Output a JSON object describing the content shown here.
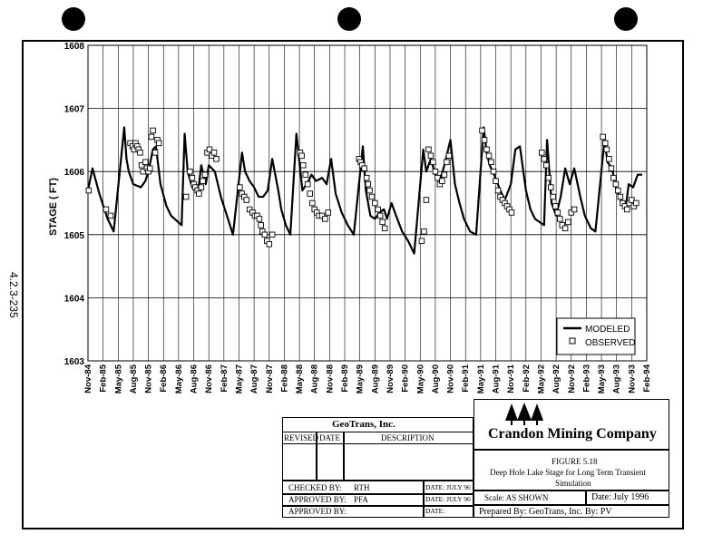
{
  "side_label": "4.2.3-235",
  "chart_data": {
    "type": "line",
    "ylabel": "STAGE ( FT)",
    "ylim": [
      1603,
      1608
    ],
    "y_ticks": [
      1603,
      1604,
      1605,
      1606,
      1607,
      1608
    ],
    "x_ticks": [
      "Nov-84",
      "Feb-85",
      "May-85",
      "Aug-85",
      "Nov-85",
      "Feb-86",
      "May-86",
      "Aug-86",
      "Nov-86",
      "Feb-87",
      "May-87",
      "Aug-87",
      "Nov-87",
      "Feb-88",
      "May-88",
      "Aug-88",
      "Nov-88",
      "Feb-89",
      "May-89",
      "Aug-89",
      "Nov-89",
      "Feb-90",
      "May-90",
      "Aug-90",
      "Nov-90",
      "Feb-91",
      "May-91",
      "Aug-91",
      "Nov-91",
      "Feb-92",
      "May-92",
      "Aug-92",
      "Nov-92",
      "Feb-93",
      "May-93",
      "Aug-93",
      "Nov-93",
      "Feb-94"
    ],
    "grid": true,
    "legend_position": "bottom-right",
    "series": [
      {
        "name": "MODELED",
        "style": "line",
        "x": [
          0,
          0.3,
          0.75,
          1.3,
          1.7,
          2.4,
          2.55,
          2.7,
          3.0,
          3.5,
          3.8,
          4.0,
          4.3,
          4.5,
          4.8,
          5.2,
          5.5,
          6.2,
          6.4,
          6.6,
          6.9,
          7.3,
          7.5,
          7.8,
          8.0,
          8.4,
          8.8,
          9.2,
          9.6,
          10.2,
          10.4,
          10.7,
          11.0,
          11.3,
          11.6,
          11.9,
          12.2,
          12.6,
          12.8,
          13.1,
          13.4,
          13.8,
          14.2,
          14.6,
          14.8,
          15.1,
          15.5,
          15.8,
          16.1,
          16.4,
          16.8,
          17.2,
          17.6,
          18.2,
          18.4,
          18.7,
          19.0,
          19.3,
          19.6,
          19.8,
          20.1,
          20.4,
          20.8,
          21.2,
          21.6,
          22.2,
          22.4,
          22.7,
          23.0,
          23.3,
          23.6,
          24.0,
          24.3,
          24.6,
          24.9,
          25.3,
          25.7,
          26.2,
          26.4,
          26.6,
          26.9,
          27.3,
          27.6,
          28.0,
          28.3,
          28.6,
          29.0,
          29.3,
          29.6,
          30.2,
          30.4,
          30.7,
          31.0,
          31.3,
          31.6,
          31.9,
          32.2,
          32.6,
          32.9,
          33.3,
          33.6,
          34.2,
          34.4,
          34.7,
          35.0,
          35.3,
          35.6,
          35.8,
          36.1,
          36.4,
          36.7
        ],
        "y": [
          1605.7,
          1606.05,
          1605.65,
          1605.25,
          1605.05,
          1606.7,
          1606.2,
          1606.0,
          1605.8,
          1605.75,
          1605.85,
          1606.0,
          1606.35,
          1606.4,
          1605.8,
          1605.45,
          1605.3,
          1605.15,
          1606.6,
          1606.0,
          1605.75,
          1605.7,
          1606.1,
          1605.8,
          1606.1,
          1606.0,
          1605.6,
          1605.3,
          1605.0,
          1606.3,
          1606.0,
          1605.85,
          1605.75,
          1605.6,
          1605.6,
          1605.7,
          1606.2,
          1605.7,
          1605.4,
          1605.15,
          1605.0,
          1606.6,
          1605.7,
          1605.85,
          1605.95,
          1605.85,
          1605.9,
          1605.8,
          1606.2,
          1605.65,
          1605.35,
          1605.15,
          1605.0,
          1606.4,
          1605.7,
          1605.3,
          1605.25,
          1605.35,
          1605.4,
          1605.25,
          1605.5,
          1605.3,
          1605.05,
          1604.9,
          1604.7,
          1606.35,
          1606.0,
          1606.2,
          1605.95,
          1605.85,
          1606.1,
          1606.5,
          1605.8,
          1605.5,
          1605.25,
          1605.05,
          1605.0,
          1606.7,
          1606.3,
          1606.1,
          1605.95,
          1605.7,
          1605.55,
          1605.8,
          1606.35,
          1606.4,
          1605.7,
          1605.4,
          1605.25,
          1605.15,
          1606.5,
          1605.5,
          1605.3,
          1605.6,
          1606.05,
          1605.8,
          1606.05,
          1605.6,
          1605.3,
          1605.1,
          1605.05,
          1606.5,
          1606.15,
          1606.05,
          1605.7,
          1605.55,
          1605.4,
          1605.8,
          1605.75,
          1605.95,
          1605.95
        ],
        "color": "#000000"
      },
      {
        "name": "OBSERVED",
        "style": "markers",
        "x": [
          0.05,
          1.2,
          1.5,
          2.8,
          2.95,
          3.05,
          3.15,
          3.25,
          3.35,
          3.45,
          3.55,
          3.65,
          3.8,
          3.9,
          4.0,
          4.1,
          4.2,
          4.3,
          4.45,
          4.6,
          4.7,
          6.5,
          6.75,
          6.9,
          7.0,
          7.1,
          7.25,
          7.35,
          7.5,
          7.6,
          7.75,
          7.9,
          8.05,
          8.2,
          8.35,
          8.5,
          10.05,
          10.2,
          10.35,
          10.5,
          10.7,
          10.9,
          11.05,
          11.2,
          11.35,
          11.45,
          11.55,
          11.7,
          11.85,
          12.0,
          12.2,
          14.05,
          14.15,
          14.25,
          14.4,
          14.55,
          14.7,
          14.85,
          15.0,
          15.15,
          15.3,
          15.5,
          15.7,
          15.9,
          17.95,
          18.05,
          18.15,
          18.3,
          18.45,
          18.55,
          18.65,
          18.8,
          19.0,
          19.2,
          19.35,
          19.5,
          19.65,
          22.1,
          22.25,
          22.4,
          22.55,
          22.7,
          22.85,
          23.0,
          23.15,
          23.3,
          23.45,
          23.6,
          23.75,
          23.9,
          26.1,
          26.25,
          26.4,
          26.55,
          26.7,
          26.85,
          27.0,
          27.15,
          27.3,
          27.45,
          27.6,
          27.75,
          27.9,
          28.05,
          30.05,
          30.2,
          30.35,
          30.5,
          30.65,
          30.8,
          30.95,
          31.1,
          31.25,
          31.4,
          31.6,
          31.8,
          32.0,
          32.2,
          34.1,
          34.25,
          34.35,
          34.5,
          34.65,
          34.8,
          34.95,
          35.1,
          35.25,
          35.4,
          35.55,
          35.7,
          35.85,
          36.0,
          36.15,
          36.3
        ],
        "y": [
          1605.7,
          1605.4,
          1605.3,
          1606.45,
          1606.4,
          1606.35,
          1606.45,
          1606.4,
          1606.35,
          1606.3,
          1606.1,
          1606.0,
          1606.15,
          1606.05,
          1606.0,
          1606.05,
          1606.55,
          1606.65,
          1606.3,
          1606.5,
          1606.45,
          1605.6,
          1606.0,
          1605.9,
          1605.8,
          1605.75,
          1605.7,
          1605.65,
          1605.75,
          1605.85,
          1605.95,
          1606.3,
          1606.35,
          1606.25,
          1606.3,
          1606.2,
          1605.75,
          1605.65,
          1605.6,
          1605.55,
          1605.4,
          1605.35,
          1605.3,
          1605.3,
          1605.25,
          1605.15,
          1605.05,
          1605.0,
          1604.9,
          1604.85,
          1605.0,
          1606.3,
          1606.25,
          1606.1,
          1605.95,
          1605.8,
          1605.65,
          1605.5,
          1605.4,
          1605.35,
          1605.3,
          1605.3,
          1605.25,
          1605.35,
          1606.2,
          1606.15,
          1606.1,
          1606.05,
          1605.9,
          1605.8,
          1605.7,
          1605.6,
          1605.5,
          1605.4,
          1605.3,
          1605.2,
          1605.1,
          1604.9,
          1605.05,
          1605.55,
          1606.35,
          1606.25,
          1606.15,
          1606.0,
          1605.9,
          1605.8,
          1605.85,
          1605.95,
          1606.15,
          1606.25,
          1606.65,
          1606.5,
          1606.35,
          1606.25,
          1606.15,
          1606.0,
          1605.85,
          1605.7,
          1605.6,
          1605.55,
          1605.5,
          1605.45,
          1605.4,
          1605.35,
          1606.3,
          1606.2,
          1606.1,
          1605.9,
          1605.75,
          1605.6,
          1605.45,
          1605.35,
          1605.25,
          1605.15,
          1605.1,
          1605.2,
          1605.35,
          1605.4,
          1606.55,
          1606.45,
          1606.35,
          1606.2,
          1606.05,
          1605.9,
          1605.8,
          1605.7,
          1605.6,
          1605.5,
          1605.45,
          1605.4,
          1605.5,
          1605.55,
          1605.45,
          1605.5
        ],
        "color": "#000000"
      }
    ]
  },
  "title_block": {
    "geotrans_header": "GeoTrans, Inc.",
    "revised": "REVISED",
    "date_col": "DATE",
    "description": "DESCRIPTION",
    "checked_by_label": "CHECKED BY:",
    "checked_by": "RTH",
    "approved_by_label_1": "APPROVED BY:",
    "approved_by_1": "PFA",
    "approved_by_label_2": "APPROVED BY:",
    "date1": "DATE: JULY 96",
    "date2": "DATE: JULY 96",
    "date3": "DATE:",
    "company": "Crandon Mining Company",
    "figure": "FIGURE 5.18",
    "figure_title_1": "Deep Hole Lake Stage for Long Term Transient",
    "figure_title_2": "Simulation",
    "scale": "Scale:   AS SHOWN",
    "date_shown": "Date:  July 1996",
    "prepared_by": "Prepared By:    GeoTrans, Inc.  By:  PV"
  }
}
